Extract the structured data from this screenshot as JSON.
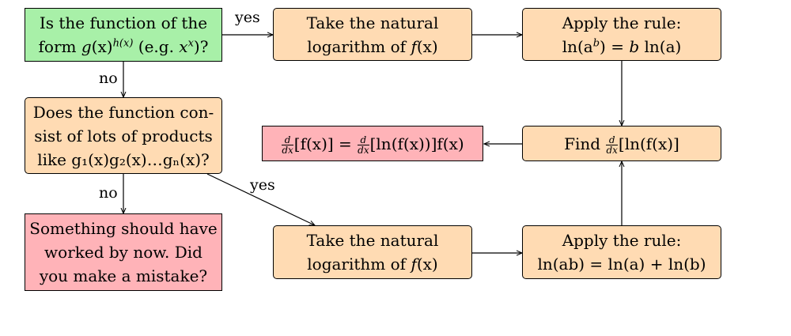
{
  "nodes": {
    "start": {
      "line1": "Is the function of the",
      "line2_pre": "form ",
      "line2_g": "g",
      "line2_x": "(x)",
      "line2_sup": "h(x)",
      "line2_mid": " (e.g. ",
      "line2_xx": "x",
      "line2_xsup": "x",
      "line2_end": ")?"
    },
    "take_log_top": {
      "line1": "Take the natural",
      "line2_pre": "logarithm of ",
      "line2_f": "f",
      "line2_x": "(x)"
    },
    "rule_power": {
      "line1": "Apply the rule:",
      "line2": "ln(a",
      "line2_sup": "b",
      "line2_mid": ")  =  ",
      "line2_b": "b",
      "line2_end": " ln(a)"
    },
    "products": {
      "line1": "Does the function con-",
      "line2": "sist of lots of products",
      "line3": "like g₁(x)g₂(x)…gₙ(x)?"
    },
    "result": {
      "frac_n": "d",
      "frac_d": "dx",
      "lhs": "[f(x)] = ",
      "rhs": "[ln(f(x))]f(x)"
    },
    "find": {
      "pre": "Find ",
      "frac_n": "d",
      "frac_d": "dx",
      "post": "[ln(f(x)]"
    },
    "mistake": {
      "line1": "Something should have",
      "line2": "worked by now.  Did",
      "line3": "you make a mistake?"
    },
    "take_log_bottom": {
      "line1": "Take the natural",
      "line2_pre": "logarithm of ",
      "line2_f": "f",
      "line2_x": "(x)"
    },
    "rule_product": {
      "line1": "Apply the rule:",
      "line2": "ln(ab) = ln(a) + ln(b)"
    }
  },
  "edge_labels": {
    "yes_top": "yes",
    "no_first": "no",
    "no_second": "no",
    "yes_diag": "yes"
  },
  "colors": {
    "start": "#a8f0a8",
    "process": "#ffdbb3",
    "terminal": "#ffb3b8"
  }
}
